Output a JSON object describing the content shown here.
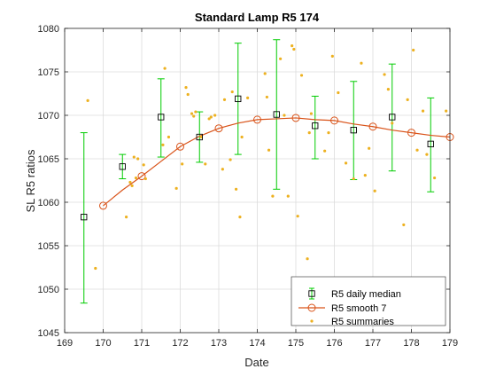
{
  "chart_data": {
    "type": "scatter",
    "title": "Standard Lamp R5   174",
    "xlabel": "Date",
    "ylabel": "SL R5  ratios",
    "xlim": [
      169,
      179
    ],
    "ylim": [
      1045,
      1080
    ],
    "xticks": [
      169,
      170,
      171,
      172,
      173,
      174,
      175,
      176,
      177,
      178,
      179
    ],
    "yticks": [
      1045,
      1050,
      1055,
      1060,
      1065,
      1070,
      1075,
      1080
    ],
    "grid": true,
    "legend_position": "bottom-right",
    "colors": {
      "median": "#00cc00",
      "smooth": "#d95319",
      "summaries": "#edb120"
    },
    "series": [
      {
        "name": "R5 daily median",
        "marker": "square",
        "points": [
          {
            "x": 169.5,
            "y": 1058.3,
            "low": 1048.4,
            "high": 1068.0
          },
          {
            "x": 170.5,
            "y": 1064.1,
            "low": 1062.7,
            "high": 1065.5
          },
          {
            "x": 171.5,
            "y": 1069.8,
            "low": 1065.2,
            "high": 1074.2
          },
          {
            "x": 172.5,
            "y": 1067.5,
            "low": 1064.6,
            "high": 1070.4
          },
          {
            "x": 173.5,
            "y": 1071.9,
            "low": 1065.5,
            "high": 1078.3
          },
          {
            "x": 174.5,
            "y": 1070.1,
            "low": 1061.5,
            "high": 1078.7
          },
          {
            "x": 175.5,
            "y": 1068.8,
            "low": 1065.0,
            "high": 1072.2
          },
          {
            "x": 176.5,
            "y": 1068.3,
            "low": 1062.6,
            "high": 1073.9
          },
          {
            "x": 177.5,
            "y": 1069.8,
            "low": 1063.6,
            "high": 1075.9
          },
          {
            "x": 178.5,
            "y": 1066.7,
            "low": 1061.2,
            "high": 1072.0
          }
        ]
      },
      {
        "name": "R5 smooth 7",
        "marker": "circle-line",
        "x": [
          170,
          170.5,
          171,
          171.5,
          172,
          172.5,
          173,
          173.5,
          174,
          174.5,
          175,
          175.5,
          176,
          176.5,
          177,
          177.5,
          178,
          178.5,
          179
        ],
        "y": [
          1059.6,
          1061.4,
          1063.0,
          1064.7,
          1066.4,
          1067.6,
          1068.5,
          1069.1,
          1069.5,
          1069.6,
          1069.7,
          1069.5,
          1069.4,
          1069.0,
          1068.7,
          1068.3,
          1068.0,
          1067.7,
          1067.5
        ]
      },
      {
        "name": "R5 summaries",
        "marker": "dot",
        "x": [
          169.6,
          169.8,
          170.6,
          170.7,
          170.75,
          170.8,
          170.85,
          170.9,
          171.05,
          171.1,
          171.55,
          171.6,
          171.7,
          171.9,
          172.05,
          172.15,
          172.2,
          172.3,
          172.35,
          172.4,
          172.55,
          172.65,
          172.75,
          172.8,
          172.9,
          173.1,
          173.15,
          173.3,
          173.35,
          173.45,
          173.55,
          173.6,
          173.75,
          174.2,
          174.25,
          174.3,
          174.4,
          174.6,
          174.7,
          174.8,
          174.9,
          174.95,
          175.05,
          175.15,
          175.3,
          175.35,
          175.4,
          175.5,
          175.75,
          175.85,
          175.95,
          176.1,
          176.3,
          176.5,
          176.7,
          176.8,
          176.9,
          177.05,
          177.3,
          177.4,
          177.5,
          177.8,
          177.9,
          178.05,
          178.15,
          178.3,
          178.4,
          178.6,
          178.9
        ],
        "y": [
          1071.7,
          1052.4,
          1058.3,
          1062.3,
          1061.9,
          1065.2,
          1062.8,
          1065.0,
          1064.3,
          1062.7,
          1066.6,
          1075.4,
          1067.5,
          1061.6,
          1064.4,
          1073.2,
          1072.4,
          1070.2,
          1069.9,
          1070.4,
          1067.5,
          1064.4,
          1069.6,
          1069.8,
          1070.0,
          1063.8,
          1071.8,
          1064.9,
          1072.7,
          1061.5,
          1058.3,
          1067.5,
          1072.0,
          1074.8,
          1072.1,
          1066.0,
          1060.7,
          1076.5,
          1070.0,
          1060.7,
          1078.0,
          1077.6,
          1058.4,
          1074.6,
          1053.5,
          1068.0,
          1070.2,
          1050.1,
          1065.9,
          1068.0,
          1076.8,
          1072.6,
          1064.5,
          1062.7,
          1076.0,
          1063.1,
          1066.2,
          1061.3,
          1074.7,
          1073.0,
          1069.1,
          1057.4,
          1071.8,
          1077.5,
          1066.0,
          1070.5,
          1065.5,
          1062.8,
          1070.5
        ]
      }
    ]
  }
}
